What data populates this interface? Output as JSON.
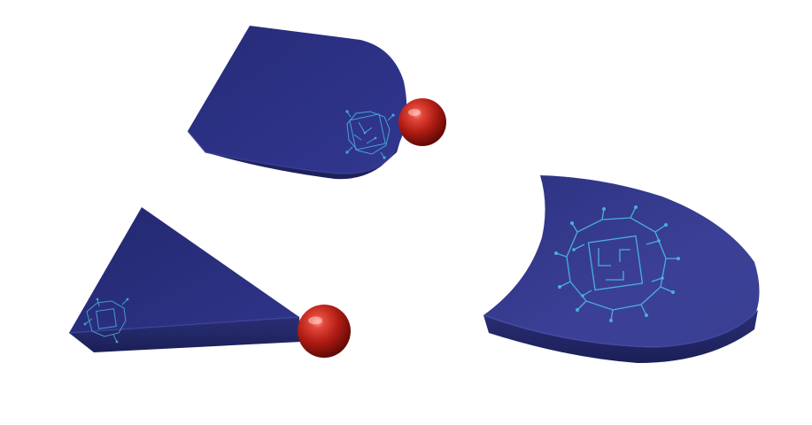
{
  "scene": {
    "background": "#ffffff",
    "colors": {
      "block_top": "#2d3280",
      "block_top_light": "#3a3f93",
      "block_side": "#1f2463",
      "block_edge": "#43489f",
      "circuit": "#4ab0d8",
      "sphere": "#c0261b",
      "sphere_highlight": "#ff8d80",
      "sphere_dark": "#6e0c08"
    },
    "objects": [
      {
        "name": "rounded-wedge-block",
        "has_circuit_pattern": true,
        "has_sphere": true
      },
      {
        "name": "triangular-wedge-block",
        "has_circuit_pattern": true,
        "has_sphere": true
      },
      {
        "name": "concave-shield-block",
        "has_circuit_pattern": true,
        "has_sphere": false
      }
    ]
  }
}
